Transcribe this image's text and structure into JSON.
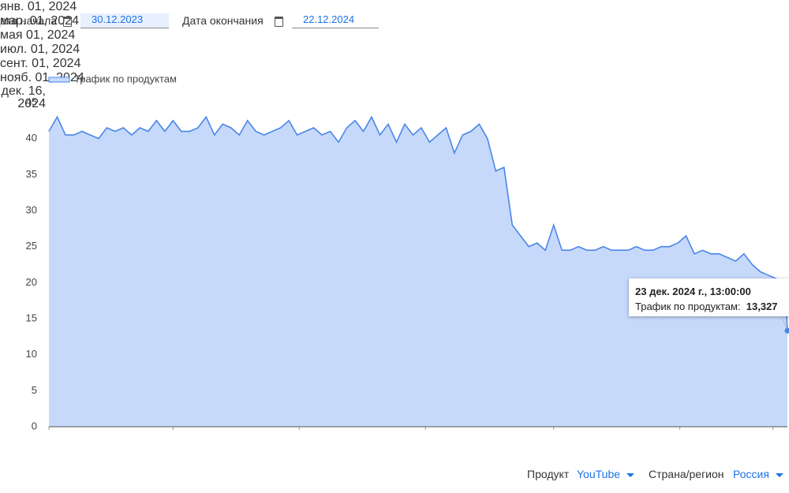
{
  "controls": {
    "start_label": "Дата начала",
    "start_value": "30.12.2023",
    "end_label": "Дата окончания",
    "end_value": "22.12.2024",
    "product_label": "Продукт",
    "product_value": "YouTube",
    "region_label": "Страна/регион",
    "region_value": "Россия"
  },
  "chart_data": {
    "type": "area",
    "x": [
      "2024-01-01",
      "2024-01-05",
      "2024-01-09",
      "2024-01-13",
      "2024-01-17",
      "2024-01-21",
      "2024-01-25",
      "2024-01-29",
      "2024-02-02",
      "2024-02-06",
      "2024-02-10",
      "2024-02-14",
      "2024-02-18",
      "2024-02-22",
      "2024-02-26",
      "2024-03-01",
      "2024-03-05",
      "2024-03-09",
      "2024-03-13",
      "2024-03-17",
      "2024-03-21",
      "2024-03-25",
      "2024-03-29",
      "2024-04-02",
      "2024-04-06",
      "2024-04-10",
      "2024-04-14",
      "2024-04-18",
      "2024-04-22",
      "2024-04-26",
      "2024-04-30",
      "2024-05-04",
      "2024-05-08",
      "2024-05-12",
      "2024-05-16",
      "2024-05-20",
      "2024-05-24",
      "2024-05-28",
      "2024-06-01",
      "2024-06-05",
      "2024-06-09",
      "2024-06-13",
      "2024-06-17",
      "2024-06-21",
      "2024-06-25",
      "2024-06-29",
      "2024-07-03",
      "2024-07-07",
      "2024-07-11",
      "2024-07-15",
      "2024-07-19",
      "2024-07-23",
      "2024-07-27",
      "2024-07-31",
      "2024-08-04",
      "2024-08-08",
      "2024-08-12",
      "2024-08-16",
      "2024-08-20",
      "2024-08-24",
      "2024-08-28",
      "2024-09-01",
      "2024-09-05",
      "2024-09-09",
      "2024-09-13",
      "2024-09-17",
      "2024-09-21",
      "2024-09-25",
      "2024-09-29",
      "2024-10-03",
      "2024-10-07",
      "2024-10-11",
      "2024-10-15",
      "2024-10-19",
      "2024-10-23",
      "2024-10-27",
      "2024-10-31",
      "2024-11-04",
      "2024-11-08",
      "2024-11-12",
      "2024-11-16",
      "2024-11-20",
      "2024-11-24",
      "2024-11-28",
      "2024-12-02",
      "2024-12-06",
      "2024-12-10",
      "2024-12-14",
      "2024-12-18",
      "2024-12-22",
      "2024-12-23"
    ],
    "series": [
      {
        "name": "Трафик по продуктам",
        "color": "#4a86e8",
        "fill": "#c6d9fb",
        "values": [
          41,
          43,
          40.5,
          40.5,
          41,
          40.5,
          40,
          41.5,
          41,
          41.5,
          40.5,
          41.5,
          41,
          42.5,
          41,
          42.5,
          41,
          41,
          41.5,
          43,
          40.5,
          42,
          41.5,
          40.5,
          42.5,
          41,
          40.5,
          41,
          41.5,
          42.5,
          40.5,
          41,
          41.5,
          40.5,
          41,
          39.5,
          41.5,
          42.5,
          41,
          43,
          40.5,
          42,
          39.5,
          42,
          40.5,
          41.5,
          39.5,
          40.5,
          41.5,
          38,
          40.5,
          41,
          42,
          40,
          35.5,
          36,
          28,
          26.5,
          25,
          25.5,
          24.5,
          28,
          24.5,
          24.5,
          25,
          24.5,
          24.5,
          25,
          24.5,
          24.5,
          24.5,
          25,
          24.5,
          24.5,
          25,
          25,
          25.5,
          26.5,
          24,
          24.5,
          24,
          24,
          23.5,
          23,
          24,
          22.5,
          21.5,
          21,
          20.5,
          19,
          13.327
        ]
      }
    ],
    "xlim": [
      "2024-01-01",
      "2024-12-23"
    ],
    "xticks": [
      {
        "value": "2024-01-01",
        "label": "янв. 01, 2024"
      },
      {
        "value": "2024-03-01",
        "label": "мар. 01, 2024"
      },
      {
        "value": "2024-05-01",
        "label": "мая 01, 2024"
      },
      {
        "value": "2024-07-01",
        "label": "июл. 01, 2024"
      },
      {
        "value": "2024-09-01",
        "label": "сент. 01, 2024"
      },
      {
        "value": "2024-11-01",
        "label": "нояб. 01, 2024"
      },
      {
        "value": "2024-12-16",
        "label": "дек. 16, 2024"
      }
    ],
    "ylim": [
      0,
      45
    ],
    "yticks": [
      0,
      5,
      10,
      15,
      20,
      25,
      30,
      35,
      40,
      45
    ],
    "tooltip": {
      "title": "23 дек. 2024 г., 13:00:00",
      "series_label": "Трафик по продуктам:",
      "value_label": "13,327"
    }
  }
}
